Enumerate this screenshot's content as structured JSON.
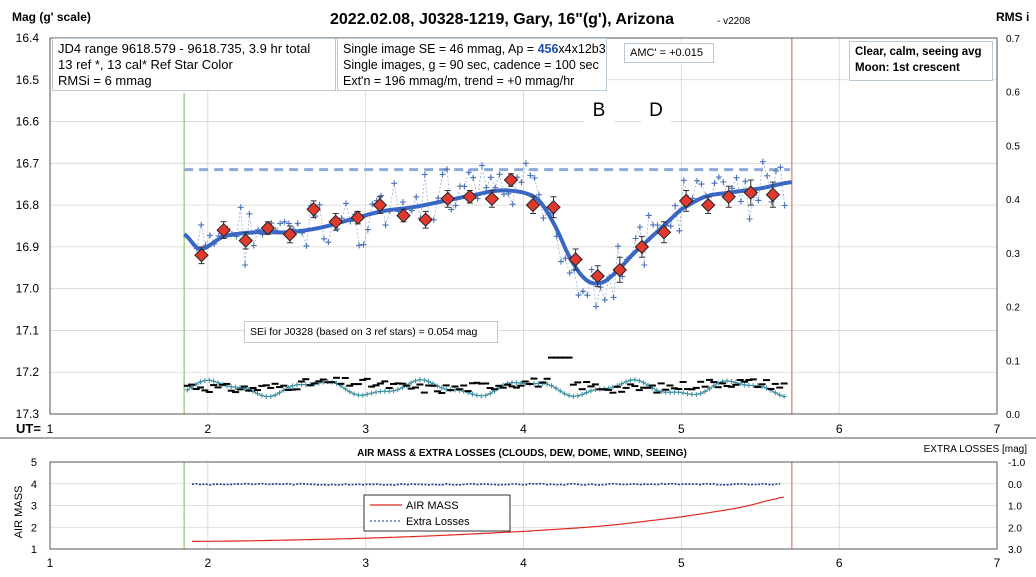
{
  "top_panel": {
    "title": "2022.02.08, J0328-1219, Gary, 16\"(g'), Arizona",
    "version": "- v2208",
    "y_left_label": "Mag (g' scale)",
    "y_right_label": "RMS i",
    "x_label": "UT=",
    "info_box_1": {
      "line1": "JD4 range 9618.579 - 9618.735, 3.9 hr total",
      "line2": "13 ref *, 13 cal*  Ref Star Color",
      "line3": "RMSi = 6 mmag"
    },
    "info_box_2": {
      "line1_prefix": "Single image SE = 46 mmag, Ap = ",
      "line1_ap": "456",
      "line1_suffix": "x4x12b3",
      "line2": "Single images, g = 90 sec, cadence = 100 sec",
      "line3": "Ext'n = 196 mmag/m, trend = +0 mmag/hr"
    },
    "amc_box": "AMC' = +0.015",
    "conditions_box": {
      "line1": "Clear, calm, seeing avg",
      "line2": "Moon: 1st crescent"
    },
    "marker_b": "B",
    "marker_d": "D",
    "sei_box": "SEi for J0328 (based on 3 ref stars) = 0.054 mag"
  },
  "bottom_panel": {
    "title": "AIR MASS & EXTRA LOSSES (CLOUDS, DEW, DOME, WIND, SEEING)",
    "y_left_label": "AIR MASS",
    "y_right_label": "EXTRA LOSSES [mag]",
    "legend_airmass": "AIR MASS",
    "legend_extra": "Extra Losses"
  },
  "colors": {
    "fit_curve": "#3a66c4",
    "reference_level": "#8fa9d6",
    "single_points": "#4a72b8",
    "averages_fill": "#e03a2e",
    "rms_teal": "#3b8fa0",
    "air_mass": "#e0281e",
    "extra_losses": "#1f3a8f",
    "start_line": "#a8d08d",
    "end_line": "#e8908a"
  },
  "chart_data": [
    {
      "type": "scatter",
      "title": "2022.02.08, J0328-1219, Gary, 16\"(g'), Arizona",
      "xlabel": "UT=",
      "ylabel": "Mag (g' scale)",
      "y2label": "RMS i",
      "xlim": [
        1,
        7
      ],
      "ylim": [
        17.3,
        16.4
      ],
      "y2lim": [
        0.0,
        0.7
      ],
      "x_ticks": [
        1,
        2,
        3,
        4,
        5,
        6,
        7
      ],
      "y_ticks": [
        16.4,
        16.5,
        16.6,
        16.7,
        16.8,
        16.9,
        17.0,
        17.1,
        17.2,
        17.3
      ],
      "y2_ticks": [
        0.0,
        0.1,
        0.2,
        0.3,
        0.4,
        0.5,
        0.6,
        0.7
      ],
      "grid": true,
      "start_ut": 1.85,
      "end_ut": 5.7,
      "reference_level": 16.715,
      "series": [
        {
          "kind": "averages",
          "x": [
            1.96,
            2.1,
            2.24,
            2.38,
            2.52,
            2.67,
            2.81,
            2.95,
            3.09,
            3.24,
            3.38,
            3.52,
            3.66,
            3.8,
            3.92,
            4.06,
            4.19,
            4.33,
            4.47,
            4.61,
            4.75,
            4.89,
            5.03,
            5.17,
            5.3,
            5.44,
            5.58
          ],
          "y": [
            16.92,
            16.86,
            16.885,
            16.855,
            16.87,
            16.81,
            16.84,
            16.83,
            16.8,
            16.825,
            16.835,
            16.785,
            16.78,
            16.785,
            16.74,
            16.8,
            16.805,
            16.93,
            16.97,
            16.955,
            16.9,
            16.865,
            16.79,
            16.8,
            16.78,
            16.77,
            16.775
          ],
          "err": [
            0.02,
            0.02,
            0.02,
            0.015,
            0.02,
            0.02,
            0.02,
            0.015,
            0.02,
            0.015,
            0.02,
            0.02,
            0.015,
            0.02,
            0.015,
            0.02,
            0.025,
            0.025,
            0.025,
            0.03,
            0.025,
            0.025,
            0.025,
            0.02,
            0.025,
            0.03,
            0.03
          ]
        },
        {
          "kind": "fit",
          "x": [
            1.85,
            1.95,
            2.1,
            2.3,
            2.5,
            2.7,
            2.9,
            3.1,
            3.3,
            3.5,
            3.7,
            3.85,
            4.0,
            4.1,
            4.2,
            4.3,
            4.4,
            4.5,
            4.6,
            4.7,
            4.8,
            4.9,
            5.0,
            5.15,
            5.3,
            5.5,
            5.7
          ],
          "y": [
            16.87,
            16.905,
            16.875,
            16.865,
            16.865,
            16.855,
            16.835,
            16.815,
            16.805,
            16.79,
            16.775,
            16.765,
            16.77,
            16.79,
            16.85,
            16.93,
            16.98,
            16.985,
            16.955,
            16.915,
            16.88,
            16.845,
            16.81,
            16.78,
            16.77,
            16.76,
            16.745
          ]
        }
      ]
    },
    {
      "type": "line",
      "title": "AIR MASS & EXTRA LOSSES (CLOUDS, DEW, DOME, WIND, SEEING)",
      "xlabel": "",
      "ylabel": "AIR MASS",
      "y2label": "EXTRA LOSSES [mag]",
      "xlim": [
        1,
        7
      ],
      "ylim": [
        1,
        5
      ],
      "y2lim": [
        3.0,
        -1.0
      ],
      "x_ticks": [
        1,
        2,
        3,
        4,
        5,
        6,
        7
      ],
      "y_ticks": [
        1,
        2,
        3,
        4,
        5
      ],
      "y2_ticks": [
        -1.0,
        0.0,
        1.0,
        2.0,
        3.0
      ],
      "grid": true,
      "legend": "center-left",
      "series": [
        {
          "name": "AIR MASS",
          "x": [
            1.9,
            2.2,
            2.5,
            2.8,
            3.1,
            3.4,
            3.7,
            4.0,
            4.2,
            4.4,
            4.6,
            4.8,
            5.0,
            5.2,
            5.4,
            5.6,
            5.65
          ],
          "y": [
            1.35,
            1.37,
            1.41,
            1.46,
            1.52,
            1.6,
            1.7,
            1.81,
            1.9,
            2.0,
            2.13,
            2.3,
            2.48,
            2.7,
            2.95,
            3.3,
            3.38
          ]
        },
        {
          "name": "Extra Losses",
          "x": [
            1.9,
            2.5,
            3.0,
            3.5,
            4.0,
            4.5,
            5.0,
            5.5,
            5.65
          ],
          "y": [
            0.03,
            0.02,
            0.04,
            0.03,
            0.02,
            0.03,
            0.02,
            0.03,
            0.02
          ]
        }
      ]
    }
  ]
}
